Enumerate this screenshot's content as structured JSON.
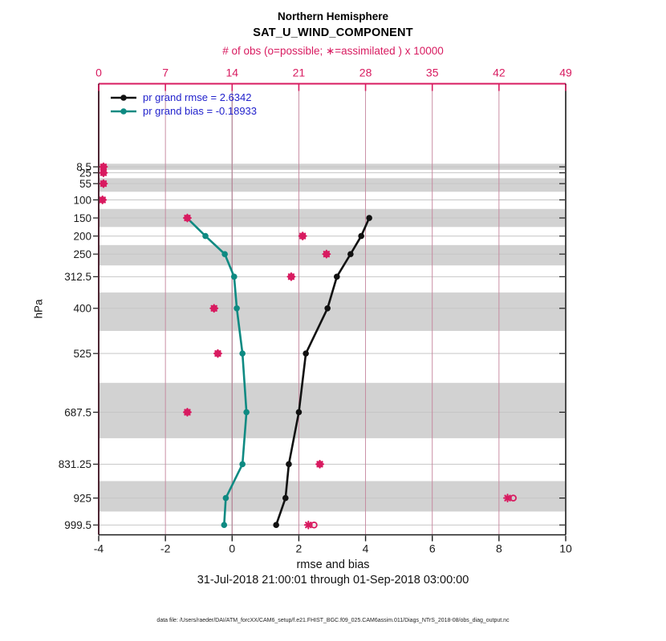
{
  "header": {
    "title": "Northern Hemisphere",
    "subtitle": "SAT_U_WIND_COMPONENT"
  },
  "legend": {
    "rmse": {
      "label": "pr grand rmse = 2.6342"
    },
    "bias": {
      "label": "pr grand bias = -0.18933"
    }
  },
  "footer": {
    "datafile": "data file: /Users/raeder/DAI/ATM_forcXX/CAM6_setup/f.e21.FHIST_BGC.f09_025.CAM6assim.011/Diags_NTrS_2018-08/obs_diag_output.nc"
  },
  "colors": {
    "obs_pink": "#d81b60",
    "rmse_black": "#111111",
    "bias_teal": "#0e8a82",
    "band_gray": "#d2d2d2",
    "level_line": "#c6c6c6",
    "grid_pink": "#c4849c",
    "zero_line": "#909090",
    "legend_text": "#2222cc",
    "border_left": "#4d2633",
    "axis_black": "#1a1a1a"
  },
  "chart_data": {
    "type": "line",
    "title": "Northern Hemisphere",
    "subtitle": "SAT_U_WIND_COMPONENT",
    "date_range": "31-Jul-2018 21:00:01 through 01-Sep-2018 03:00:00",
    "top_axis": {
      "label": "# of obs (o=possible; ∗=assimilated ) x 10000",
      "ticks": [
        0,
        7,
        14,
        21,
        28,
        35,
        42,
        49
      ],
      "range": [
        0,
        49
      ]
    },
    "bottom_axis": {
      "label": "rmse and bias",
      "ticks": [
        -4,
        -2,
        0,
        2,
        4,
        6,
        8,
        10
      ],
      "range": [
        -4,
        10
      ]
    },
    "left_axis": {
      "label": "hPa",
      "levels": [
        8.5,
        25,
        55,
        100,
        150,
        200,
        250,
        312.5,
        400,
        525,
        687.5,
        831.25,
        925,
        999.5
      ],
      "level_labels": [
        "8.5",
        "25",
        "55",
        "100",
        "150",
        "200",
        "250",
        "312.5",
        "400",
        "525",
        "687.5",
        "831.25",
        "925",
        "999.5"
      ],
      "ylim": [
        -222.5,
        1025.6
      ]
    },
    "grid": {
      "vertical_pink_at_top_ticks": [
        7,
        14,
        21,
        28,
        35,
        42
      ],
      "zero_line_at": 0
    },
    "shaded_levels": [
      8.5,
      55,
      150,
      250,
      400,
      687.5,
      925
    ],
    "series": [
      {
        "name": "pr grand rmse = 2.6342",
        "role": "rmse",
        "levels": [
          150,
          200,
          250,
          312.5,
          400,
          525,
          687.5,
          831.25,
          925,
          999.5
        ],
        "values": [
          4.11,
          3.87,
          3.55,
          3.14,
          2.86,
          2.21,
          2.0,
          1.7,
          1.6,
          1.32
        ]
      },
      {
        "name": "pr grand bias = -0.18933",
        "role": "bias",
        "levels": [
          150,
          200,
          250,
          312.5,
          400,
          525,
          687.5,
          831.25,
          925,
          999.5
        ],
        "values": [
          -1.35,
          -0.8,
          -0.22,
          0.06,
          0.14,
          0.31,
          0.43,
          0.31,
          -0.19,
          -0.24
        ]
      }
    ],
    "obs_counts_x10000": {
      "levels": [
        8.5,
        25,
        55,
        100,
        150,
        200,
        250,
        312.5,
        400,
        525,
        687.5,
        831.25,
        925,
        999.5
      ],
      "possible": [
        0.5,
        0.5,
        0.5,
        0.4,
        9.3,
        21.4,
        23.9,
        20.2,
        12.1,
        12.5,
        9.3,
        23.2,
        43.5,
        22.6
      ],
      "assimilated": [
        0.5,
        0.5,
        0.5,
        0.4,
        9.3,
        21.4,
        23.9,
        20.2,
        12.1,
        12.5,
        9.3,
        23.2,
        42.9,
        22.0
      ]
    }
  }
}
